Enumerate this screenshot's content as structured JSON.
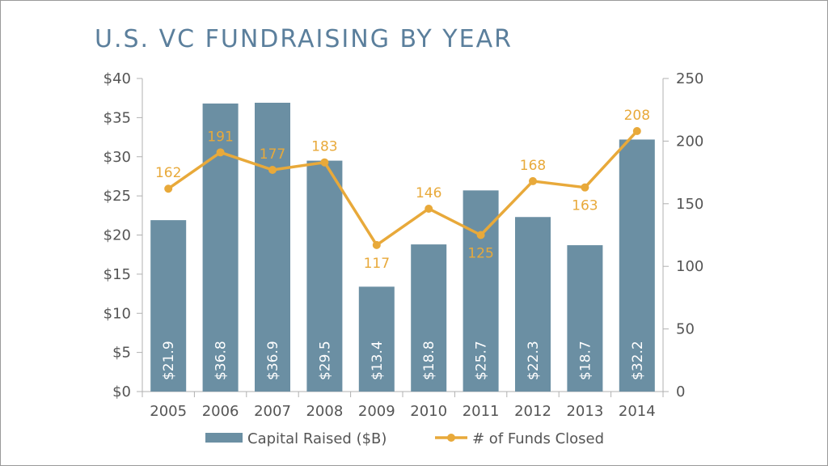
{
  "colors": {
    "bar": "#6b8fa3",
    "line": "#e8a93a",
    "axis": "#b0b0b0",
    "title": "#5b7f9c",
    "text": "#555555"
  },
  "chart_data": {
    "type": "bar",
    "title": "U.S. VC FUNDRAISING BY YEAR",
    "categories": [
      "2005",
      "2006",
      "2007",
      "2008",
      "2009",
      "2010",
      "2011",
      "2012",
      "2013",
      "2014"
    ],
    "series": [
      {
        "name": "Capital Raised ($B)",
        "type": "bar",
        "axis": "left",
        "values": [
          21.9,
          36.8,
          36.9,
          29.5,
          13.4,
          18.8,
          25.7,
          22.3,
          18.7,
          32.2
        ],
        "labels": [
          "$21.9",
          "$36.8",
          "$36.9",
          "$29.5",
          "$13.4",
          "$18.8",
          "$25.7",
          "$22.3",
          "$18.7",
          "$32.2"
        ]
      },
      {
        "name": "# of Funds Closed",
        "type": "line",
        "axis": "right",
        "values": [
          162,
          191,
          177,
          183,
          117,
          146,
          125,
          168,
          163,
          208
        ],
        "labels": [
          "162",
          "191",
          "177",
          "183",
          "117",
          "146",
          "125",
          "168",
          "163",
          "208"
        ]
      }
    ],
    "y_left": {
      "ylim": [
        0,
        40
      ],
      "ticks": [
        0,
        5,
        10,
        15,
        20,
        25,
        30,
        35,
        40
      ],
      "tick_labels": [
        "$0",
        "$5",
        "$10",
        "$15",
        "$20",
        "$25",
        "$30",
        "$35",
        "$40"
      ]
    },
    "y_right": {
      "ylim": [
        0,
        250
      ],
      "ticks": [
        0,
        50,
        100,
        150,
        200,
        250
      ],
      "tick_labels": [
        "0",
        "50",
        "100",
        "150",
        "200",
        "250"
      ]
    },
    "legend": {
      "placement": "bottom",
      "entries": [
        "Capital Raised ($B)",
        "# of Funds Closed"
      ]
    },
    "grid": false
  }
}
